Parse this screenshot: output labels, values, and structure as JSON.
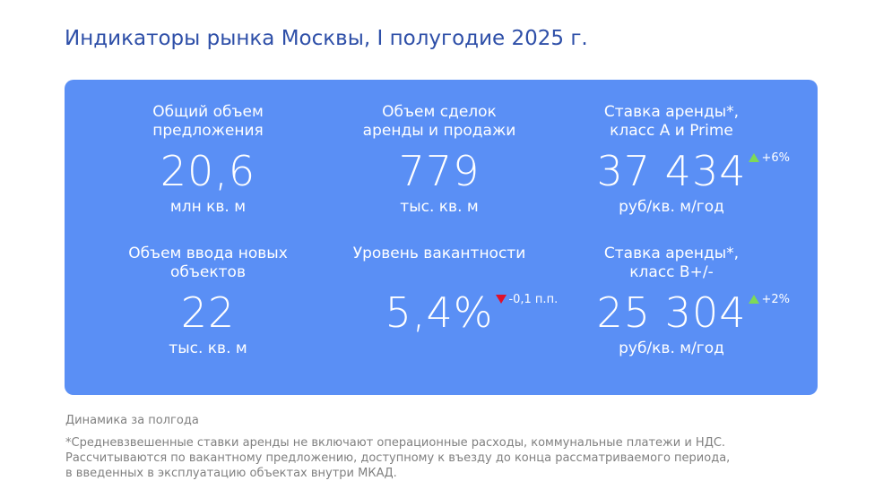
{
  "page": {
    "title": "Индикаторы рынка Москвы, I полугодие 2025 г."
  },
  "colors": {
    "title": "#2e4fa8",
    "panel": "#5a8ff5",
    "up_arrow": "#7ed957",
    "down_arrow": "#e0102a",
    "footnote": "#808080"
  },
  "indicators": [
    {
      "title_line1": "Общий объем",
      "title_line2": "предложения",
      "value": "20,6",
      "unit": "млн кв. м",
      "change": ""
    },
    {
      "title_line1": "Объем сделок",
      "title_line2": "аренды и продажи",
      "value": "779",
      "unit": "тыс. кв. м",
      "change": ""
    },
    {
      "title_line1": "Ставка аренды*,",
      "title_line2": "класс А и Prime",
      "value": "37 434",
      "unit": "руб/кв. м/год",
      "change": "+6%",
      "change_direction": "up"
    },
    {
      "title_line1": "Объем ввода новых",
      "title_line2": "объектов",
      "value": "22",
      "unit": "тыс. кв. м",
      "change": ""
    },
    {
      "title_line1": "Уровень вакантности",
      "title_line2": "",
      "value": "5,4%",
      "unit": "",
      "change": "-0,1 п.п.",
      "change_direction": "down"
    },
    {
      "title_line1": "Ставка аренды*,",
      "title_line2": "класс В+/-",
      "value": "25 304",
      "unit": "руб/кв. м/год",
      "change": "+2%",
      "change_direction": "up"
    }
  ],
  "footnotes": {
    "caption": "Динамика за полгода",
    "line1": "*Средневзвешенные ставки аренды не включают операционные расходы, коммунальные платежи и НДС.",
    "line2": "Рассчитываются по вакантному предложению, доступному к въезду до конца рассматриваемого периода,",
    "line3": "в введенных в эксплуатацию объектах внутри МКАД."
  }
}
